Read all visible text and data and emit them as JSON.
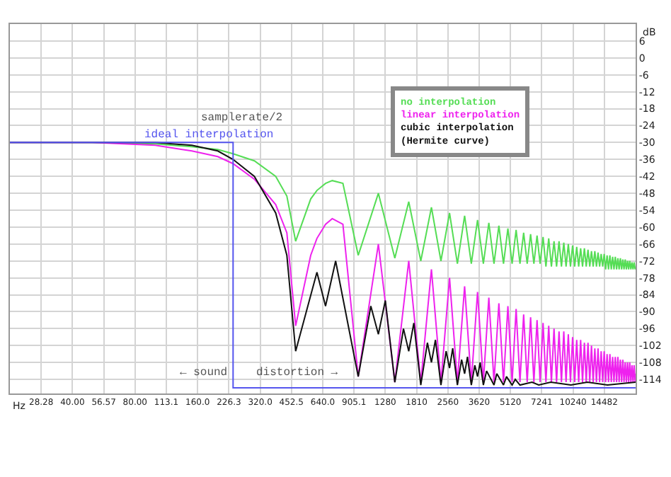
{
  "chart_data": {
    "type": "line",
    "xlabel": "Hz",
    "ylabel": "dB",
    "log": "x",
    "grid": true,
    "legend": "top right",
    "xlim": [
      20,
      20480
    ],
    "ylim": [
      -119,
      12
    ],
    "xticks": [
      28.28,
      {
        "value": 40,
        "label": "40.00"
      },
      56.57,
      {
        "value": 80,
        "label": "80.00"
      },
      113.1,
      {
        "value": 160,
        "label": "160.0"
      },
      226.3,
      {
        "value": 320,
        "label": "320.0"
      },
      452.5,
      {
        "value": 640,
        "label": "640.0"
      },
      905.1,
      1280,
      1810,
      2560,
      3620,
      5120,
      7241,
      10240,
      14482
    ],
    "yticks": [
      6,
      0,
      -6,
      -12,
      -18,
      -24,
      -30,
      -36,
      -42,
      -48,
      -54,
      -60,
      -66,
      -72,
      -78,
      -84,
      -90,
      -96,
      -102,
      -108,
      -114
    ],
    "annotations": [
      "samplerate/2",
      "ideal interpolation",
      "← sound",
      "distortion →"
    ],
    "series": [
      {
        "color": "#5555ee",
        "x": [
          20,
          237,
          237,
          20480
        ],
        "values": [
          -30,
          -30,
          -117,
          -117
        ]
      },
      {
        "name": "no interpolation",
        "color": "#55dd55",
        "x": [
          20,
          50,
          100,
          150,
          200,
          237,
          300,
          380,
          430,
          474,
          560,
          600,
          660,
          711,
          800,
          948,
          1185,
          1422,
          1659,
          1896,
          2133,
          2370,
          2607,
          2844,
          3081,
          3318,
          3555,
          3792,
          4029,
          4266,
          4503,
          4740,
          4977,
          5214,
          5451,
          5688,
          5925,
          6162,
          6399,
          6636,
          6873,
          7110,
          7347,
          7584,
          7821,
          8058,
          8295,
          8532,
          8769,
          9006,
          9243,
          9480,
          9717,
          9954,
          10191,
          10428,
          10665,
          10902,
          11139,
          11376,
          11613,
          11850,
          12087,
          12324,
          12561,
          12798,
          13035,
          13272,
          13509,
          13746,
          13983,
          14220,
          14457,
          14694,
          14931,
          15168,
          15405,
          15642,
          15879,
          16116,
          16353,
          16590,
          16827,
          17064,
          17301,
          17538,
          17775,
          18012,
          18249,
          18486,
          18723,
          18960,
          19197,
          19434,
          19671,
          19908,
          20145,
          20382,
          20480
        ],
        "values": [
          -30,
          -30,
          -30.5,
          -31.5,
          -32.5,
          -34,
          -36.5,
          -42,
          -49,
          -65,
          -50,
          -47,
          -44.5,
          -43.5,
          -44.5,
          -70,
          -48,
          -71,
          -51,
          -72,
          -53,
          -72,
          -55,
          -73,
          -56,
          -73,
          -57.5,
          -73,
          -58.5,
          -73,
          -59.5,
          -73,
          -60.5,
          -73,
          -61,
          -73,
          -62,
          -73,
          -62.5,
          -73,
          -63,
          -73,
          -63.5,
          -74,
          -64,
          -74,
          -65,
          -74,
          -65,
          -74,
          -65.5,
          -74,
          -66,
          -74,
          -66.5,
          -74,
          -67,
          -74,
          -67.5,
          -74,
          -67.5,
          -74,
          -68,
          -74,
          -68.5,
          -74,
          -68.5,
          -74,
          -69,
          -74,
          -69.5,
          -74,
          -69.5,
          -75,
          -70,
          -75,
          -70,
          -75,
          -70.5,
          -75,
          -70.5,
          -75,
          -71,
          -75,
          -71,
          -75,
          -71.5,
          -75,
          -71.5,
          -75,
          -72,
          -75,
          -72,
          -75,
          -72.5,
          -75,
          -72.5,
          -75,
          -74
        ]
      },
      {
        "name": "linear interpolation",
        "color": "#ee22ee",
        "x": [
          20,
          50,
          100,
          150,
          200,
          237,
          300,
          380,
          430,
          474,
          560,
          600,
          660,
          711,
          800,
          948,
          1185,
          1422,
          1659,
          1896,
          2133,
          2370,
          2607,
          2844,
          3081,
          3318,
          3555,
          3792,
          4029,
          4266,
          4503,
          4740,
          4977,
          5214,
          5451,
          5688,
          5925,
          6162,
          6399,
          6636,
          6873,
          7110,
          7347,
          7584,
          7821,
          8058,
          8295,
          8532,
          8769,
          9006,
          9243,
          9480,
          9717,
          9954,
          10191,
          10428,
          10665,
          10902,
          11139,
          11376,
          11613,
          11850,
          12087,
          12324,
          12561,
          12798,
          13035,
          13272,
          13509,
          13746,
          13983,
          14220,
          14457,
          14694,
          14931,
          15168,
          15405,
          15642,
          15879,
          16116,
          16353,
          16590,
          16827,
          17064,
          17301,
          17538,
          17775,
          18012,
          18249,
          18486,
          18723,
          18960,
          19197,
          19434,
          19671,
          19908,
          20145,
          20382,
          20480
        ],
        "values": [
          -30,
          -30,
          -31,
          -33,
          -35,
          -37.5,
          -43,
          -52,
          -62,
          -95,
          -70,
          -64,
          -59,
          -57,
          -59,
          -113,
          -66,
          -115,
          -72,
          -115,
          -75,
          -115,
          -78,
          -115,
          -81,
          -115,
          -83,
          -115,
          -85,
          -115,
          -87,
          -115,
          -88,
          -115,
          -89,
          -115,
          -91,
          -115,
          -92,
          -115,
          -93,
          -115,
          -94,
          -115,
          -95,
          -115,
          -96,
          -115,
          -97,
          -115,
          -97,
          -115,
          -98,
          -115,
          -99,
          -115,
          -100,
          -115,
          -100,
          -115,
          -101,
          -115,
          -101,
          -115,
          -102,
          -115,
          -103,
          -115,
          -103,
          -115,
          -104,
          -115,
          -104,
          -115,
          -105,
          -115,
          -105,
          -115,
          -106,
          -115,
          -106,
          -115,
          -106,
          -115,
          -107,
          -115,
          -107,
          -115,
          -108,
          -115,
          -108,
          -115,
          -108,
          -115,
          -109,
          -115,
          -109,
          -115,
          -112
        ]
      },
      {
        "name": "cubic interpolation\n(Hermite curve)",
        "color": "#111111",
        "x": [
          20,
          50,
          100,
          150,
          200,
          237,
          300,
          380,
          430,
          474,
          600,
          660,
          738,
          948,
          1090,
          1185,
          1280,
          1422,
          1565,
          1659,
          1755,
          1896,
          2040,
          2133,
          2230,
          2370,
          2510,
          2607,
          2700,
          2844,
          2980,
          3081,
          3180,
          3318,
          3450,
          3555,
          3660,
          3792,
          3930,
          4266,
          4400,
          4740,
          4900,
          5214,
          5400,
          5688,
          6500,
          7000,
          8000,
          10000,
          12000,
          15000,
          20480
        ],
        "values": [
          -30,
          -30,
          -30,
          -31,
          -33,
          -36,
          -42,
          -55,
          -70,
          -104,
          -76,
          -88,
          -72,
          -113,
          -88,
          -98,
          -86,
          -115,
          -96,
          -104,
          -94,
          -116,
          -101,
          -108,
          -100,
          -116,
          -104,
          -110,
          -103,
          -116,
          -107,
          -112,
          -106,
          -116,
          -109,
          -113,
          -108,
          -116,
          -111,
          -116,
          -112,
          -116,
          -113,
          -116,
          -114,
          -116,
          -115,
          -116,
          -115,
          -116,
          -115,
          -116,
          -115
        ]
      }
    ]
  }
}
